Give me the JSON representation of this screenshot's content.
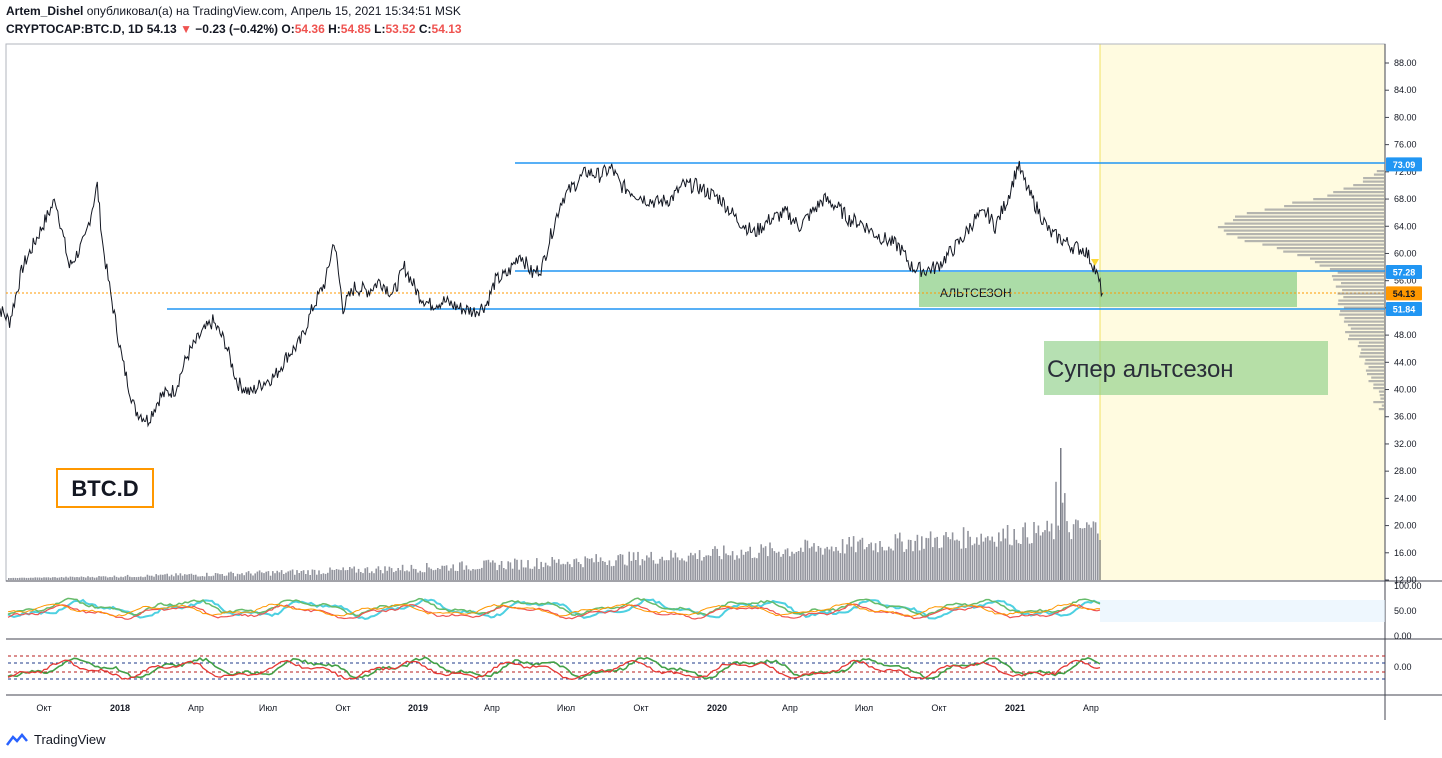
{
  "header": {
    "author": "Artem_Dishel",
    "published_text": "опубликовал(а) на TradingView.com, Апрель 15, 2021 15:34:51 MSK",
    "symbol": "CRYPTOCAP:BTC.D, 1D",
    "last": "54.13",
    "change_arrow": "▼",
    "change": "−0.23 (−0.42%)",
    "o_label": "O:",
    "o_value": "54.36",
    "h_label": "H:",
    "h_value": "54.85",
    "l_label": "L:",
    "l_value": "53.52",
    "c_label": "C:",
    "c_value": "54.13"
  },
  "footer": {
    "brand": "TradingView"
  },
  "colors": {
    "price_line": "#131722",
    "level_line": "#2196f3",
    "zone_green": "#8fd089",
    "future_bg": "#fffbe0",
    "badge_orange": "#ff9800",
    "volume": "#787b86",
    "osc_cyan": "#4dd0e1",
    "osc_green": "#66bb6a",
    "osc_red": "#ef5350"
  },
  "annotations": {
    "altseason_label": "АЛЬТСЕЗОН",
    "super_altseason_label": "Супер альтсезон",
    "ticker_badge": "BTC.D"
  },
  "chart_data": {
    "type": "line",
    "title": "",
    "y_axis": {
      "min": 12,
      "max": 90,
      "ticks": [
        "88.00",
        "84.00",
        "80.00",
        "76.00",
        "72.00",
        "68.00",
        "64.00",
        "60.00",
        "56.00",
        "52.00",
        "48.00",
        "44.00",
        "40.00",
        "36.00",
        "32.00",
        "28.00",
        "24.00",
        "20.00",
        "16.00",
        "12.00"
      ]
    },
    "x_ticks": [
      "Окт",
      "2018",
      "Апр",
      "Июл",
      "Окт",
      "2019",
      "Апр",
      "Июл",
      "Окт",
      "2020",
      "Апр",
      "Июл",
      "Окт",
      "2021",
      "Апр"
    ],
    "price_series": {
      "name": "",
      "points": [
        [
          "2017-08-01",
          53
        ],
        [
          "2017-08-20",
          50
        ],
        [
          "2017-09-05",
          58
        ],
        [
          "2017-09-25",
          63
        ],
        [
          "2017-10-15",
          68
        ],
        [
          "2017-11-01",
          58
        ],
        [
          "2017-11-20",
          62
        ],
        [
          "2017-12-05",
          70
        ],
        [
          "2017-12-12",
          61
        ],
        [
          "2017-12-20",
          55
        ],
        [
          "2018-01-05",
          44
        ],
        [
          "2018-01-20",
          37
        ],
        [
          "2018-02-05",
          35.5
        ],
        [
          "2018-02-20",
          39
        ],
        [
          "2018-03-10",
          40
        ],
        [
          "2018-03-25",
          45
        ],
        [
          "2018-04-10",
          48
        ],
        [
          "2018-04-25",
          50
        ],
        [
          "2018-05-10",
          47
        ],
        [
          "2018-05-25",
          41
        ],
        [
          "2018-06-10",
          39.5
        ],
        [
          "2018-06-25",
          41
        ],
        [
          "2018-07-10",
          42
        ],
        [
          "2018-07-25",
          45
        ],
        [
          "2018-08-10",
          47
        ],
        [
          "2018-08-25",
          52
        ],
        [
          "2018-09-10",
          56
        ],
        [
          "2018-09-20",
          62
        ],
        [
          "2018-10-01",
          52
        ],
        [
          "2018-10-15",
          55
        ],
        [
          "2018-11-01",
          54.5
        ],
        [
          "2018-11-15",
          56
        ],
        [
          "2018-12-01",
          54
        ],
        [
          "2018-12-15",
          58
        ],
        [
          "2019-01-01",
          54
        ],
        [
          "2019-01-15",
          52.5
        ],
        [
          "2019-02-01",
          53
        ],
        [
          "2019-02-20",
          52
        ],
        [
          "2019-03-10",
          51.5
        ],
        [
          "2019-03-25",
          52.5
        ],
        [
          "2019-04-05",
          56
        ],
        [
          "2019-04-20",
          57
        ],
        [
          "2019-05-05",
          60
        ],
        [
          "2019-05-20",
          57
        ],
        [
          "2019-06-01",
          58
        ],
        [
          "2019-06-10",
          62
        ],
        [
          "2019-06-25",
          68
        ],
        [
          "2019-07-10",
          70
        ],
        [
          "2019-07-25",
          72
        ],
        [
          "2019-08-10",
          71.5
        ],
        [
          "2019-08-25",
          72.5
        ],
        [
          "2019-09-05",
          70
        ],
        [
          "2019-09-20",
          69
        ],
        [
          "2019-10-05",
          68
        ],
        [
          "2019-10-20",
          67.5
        ],
        [
          "2019-11-05",
          68
        ],
        [
          "2019-11-20",
          70
        ],
        [
          "2019-12-05",
          70
        ],
        [
          "2019-12-20",
          69
        ],
        [
          "2020-01-05",
          68
        ],
        [
          "2020-01-25",
          65
        ],
        [
          "2020-02-15",
          63
        ],
        [
          "2020-03-05",
          65
        ],
        [
          "2020-03-25",
          66
        ],
        [
          "2020-04-10",
          64
        ],
        [
          "2020-04-25",
          66
        ],
        [
          "2020-05-10",
          68
        ],
        [
          "2020-05-25",
          67
        ],
        [
          "2020-06-10",
          65
        ],
        [
          "2020-06-25",
          64.5
        ],
        [
          "2020-07-10",
          63
        ],
        [
          "2020-07-25",
          62
        ],
        [
          "2020-08-10",
          61
        ],
        [
          "2020-08-25",
          58
        ],
        [
          "2020-09-10",
          57.5
        ],
        [
          "2020-09-25",
          58
        ],
        [
          "2020-10-10",
          60
        ],
        [
          "2020-10-25",
          62
        ],
        [
          "2020-11-10",
          65
        ],
        [
          "2020-11-25",
          66
        ],
        [
          "2020-12-05",
          64
        ],
        [
          "2020-12-20",
          68
        ],
        [
          "2021-01-02",
          73
        ],
        [
          "2021-01-15",
          69
        ],
        [
          "2021-01-28",
          66
        ],
        [
          "2021-02-10",
          63
        ],
        [
          "2021-02-25",
          62
        ],
        [
          "2021-03-10",
          61
        ],
        [
          "2021-03-25",
          60.5
        ],
        [
          "2021-04-05",
          58
        ],
        [
          "2021-04-15",
          54.13
        ]
      ]
    },
    "horizontal_levels": [
      {
        "value": 73.09,
        "label": "73.09"
      },
      {
        "value": 57.28,
        "label": "57.28"
      },
      {
        "value": 54.13,
        "label": "54.13"
      },
      {
        "value": 51.84,
        "label": "51.84"
      }
    ],
    "volume_profile": "right-side histogram",
    "oscillator_1": {
      "ticks": [
        "100.00",
        "50.00",
        "0.00"
      ]
    },
    "oscillator_2": {
      "ticks": [
        "0.00"
      ]
    }
  }
}
